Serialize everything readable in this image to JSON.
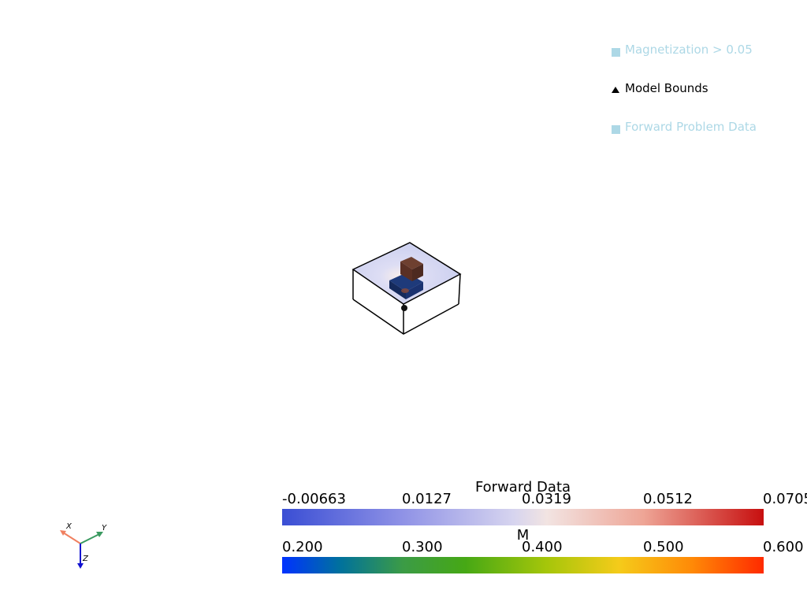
{
  "legend": {
    "items": [
      {
        "label": "Magnetization > 0.05",
        "symbol": "square",
        "color": "#add8e6"
      },
      {
        "label": "Model Bounds",
        "symbol": "triangle",
        "color": "#000000"
      },
      {
        "label": "Forward Problem Data",
        "symbol": "square",
        "color": "#add8e6"
      }
    ]
  },
  "colorbars": {
    "forward": {
      "title": "Forward Data",
      "ticks": [
        "-0.00663",
        "0.0127",
        "0.0319",
        "0.0512",
        "0.0705"
      ],
      "range": [
        -0.00663,
        0.0705
      ],
      "colormap": "coolwarm"
    },
    "magnetization": {
      "title": "M",
      "ticks": [
        "0.200",
        "0.300",
        "0.400",
        "0.500",
        "0.600"
      ],
      "range": [
        0.2,
        0.6
      ],
      "colormap": "jet-like"
    }
  },
  "axes_widget": {
    "x_label": "X",
    "y_label": "Y",
    "z_label": "Z",
    "x_color": "#f08060",
    "y_color": "#3a9a60",
    "z_color": "#1010d0"
  }
}
